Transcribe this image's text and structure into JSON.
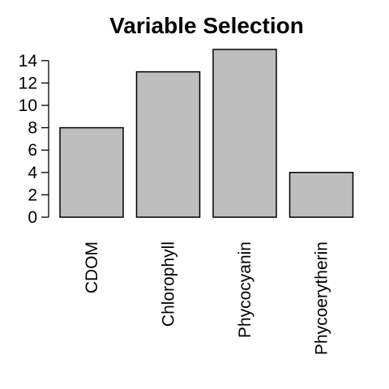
{
  "chart_data": {
    "type": "bar",
    "title": "Variable Selection",
    "categories": [
      "CDOM",
      "Chlorophyll",
      "Phycocyanin",
      "Phycoerytherin"
    ],
    "values": [
      8,
      13,
      15,
      4
    ],
    "ylim": [
      0,
      15
    ],
    "yticks": [
      0,
      2,
      4,
      6,
      8,
      10,
      12,
      14
    ],
    "bar_color": "#bebebe",
    "grid": false,
    "legend": "none"
  }
}
